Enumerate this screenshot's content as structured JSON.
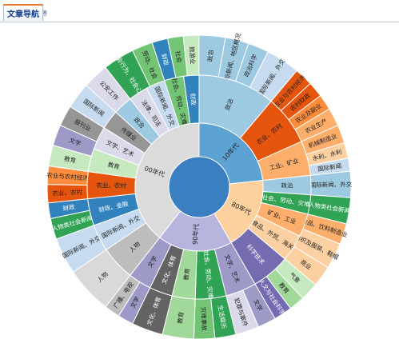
{
  "tab": {
    "label": "文章导航",
    "close_icon": "close-icon"
  },
  "chart_data": {
    "type": "sunburst",
    "center": {
      "color": "#3a7fc0"
    },
    "decades": [
      {
        "name": "10年代",
        "color": "#5ca2d2",
        "start": -90,
        "end": -6
      },
      {
        "name": "80年代",
        "color": "#fdd09e",
        "start": -6,
        "end": 60
      },
      {
        "name": "90年代",
        "color": "#b7b5de",
        "start": 60,
        "end": 128
      },
      {
        "name": "00年代",
        "color": "#dbdbdb",
        "start": 128,
        "end": 270
      }
    ],
    "ring2": [
      {
        "label": "政治",
        "color": "#9ecae1",
        "start": -90,
        "end": -50
      },
      {
        "label": "农业、农村",
        "color": "#e6550d",
        "start": -50,
        "end": -24
      },
      {
        "label": "工业、矿业",
        "color": "#fdae6b",
        "start": -24,
        "end": -6
      },
      {
        "label": "政治",
        "color": "#9ecae1",
        "start": -6,
        "end": 4
      },
      {
        "label": "社会、劳动、灾难",
        "color": "#31a354",
        "start": 4,
        "end": 14
      },
      {
        "label": "矿业、工业",
        "color": "#fdae6b",
        "start": 14,
        "end": 26
      },
      {
        "label": "食品、外贸、海关",
        "color": "#fdd0a2",
        "start": 26,
        "end": 40
      },
      {
        "label": "科学技术",
        "color": "#756bb1",
        "start": 40,
        "end": 60
      },
      {
        "label": "文学、艺术",
        "color": "#9e9ac8",
        "start": 60,
        "end": 76
      },
      {
        "label": "社会、劳动、灾难",
        "color": "#31a354",
        "start": 76,
        "end": 92
      },
      {
        "label": "教育",
        "color": "#a1d99b",
        "start": 92,
        "end": 104
      },
      {
        "label": "文化、体育",
        "color": "#636363",
        "start": 104,
        "end": 116
      },
      {
        "label": "文学",
        "color": "#9e9ac8",
        "start": 116,
        "end": 128
      },
      {
        "label": "人物",
        "color": "#bdbdbd",
        "start": 128,
        "end": 146
      },
      {
        "label": "国际新闻、外交",
        "color": "#c6dbef",
        "start": 146,
        "end": 160
      },
      {
        "label": "财政、金融",
        "color": "#3182bd",
        "start": 160,
        "end": 174
      },
      {
        "label": "农业、农村",
        "color": "#e6550d",
        "start": 174,
        "end": 188
      },
      {
        "label": "教育",
        "color": "#c7e9c0",
        "start": 188,
        "end": 200
      },
      {
        "label": "文学、艺术",
        "color": "#dadaeb",
        "start": 200,
        "end": 212
      },
      {
        "label": "传媒业",
        "color": "#969696",
        "start": 212,
        "end": 222
      },
      {
        "label": "政治",
        "color": "#9ecae1",
        "start": 222,
        "end": 232
      },
      {
        "label": "法律、司法",
        "color": "#dadaeb",
        "start": 232,
        "end": 242
      },
      {
        "label": "国际新闻、外交",
        "color": "#c6dbef",
        "start": 242,
        "end": 252
      },
      {
        "label": "社会、劳动、灾难",
        "color": "#74c476",
        "start": 252,
        "end": 262
      },
      {
        "label": "财政",
        "color": "#3182bd",
        "start": 262,
        "end": 270
      }
    ],
    "ring3": [
      {
        "label": "政治",
        "color": "#9ecae1",
        "start": -90,
        "end": -80
      },
      {
        "label": "国际新闻、地区概况",
        "color": "#9ecae1",
        "start": -80,
        "end": -71
      },
      {
        "label": "政治科学",
        "color": "#9ecae1",
        "start": -71,
        "end": -63
      },
      {
        "label": "国际新闻、外交",
        "color": "#c6dbef",
        "start": -63,
        "end": -50
      },
      {
        "label": "农业与农村经济",
        "color": "#e6550d",
        "start": -50,
        "end": -43
      },
      {
        "label": "农村财政",
        "color": "#e6550d",
        "start": -43,
        "end": -37
      },
      {
        "label": "农业及副业",
        "color": "#fd8d3c",
        "start": -37,
        "end": -31
      },
      {
        "label": "农业生产",
        "color": "#fdae6b",
        "start": -31,
        "end": -24
      },
      {
        "label": "机械制造业",
        "color": "#fdae6b",
        "start": -24,
        "end": -17
      },
      {
        "label": "水利、水利",
        "color": "#fdd0a2",
        "start": -17,
        "end": -11
      },
      {
        "label": "国际新闻",
        "color": "#c6dbef",
        "start": -11,
        "end": -6
      },
      {
        "label": "国际新闻、外交",
        "color": "#9ecae1",
        "start": -6,
        "end": 4
      },
      {
        "label": "人物类社会新闻",
        "color": "#31a354",
        "start": 4,
        "end": 14
      },
      {
        "label": "食品、饮料制造业",
        "color": "#fdae6b",
        "start": 14,
        "end": 22
      },
      {
        "label": "纺织及服装、鞋帽",
        "color": "#fdd0a2",
        "start": 22,
        "end": 32
      },
      {
        "label": "商业",
        "color": "#fdd0a2",
        "start": 32,
        "end": 40
      },
      {
        "label": "气象",
        "color": "#c7e9c0",
        "start": 40,
        "end": 47
      },
      {
        "label": "教育",
        "color": "#a1d99b",
        "start": 47,
        "end": 53
      },
      {
        "label": "人文与社会科学",
        "color": "#756bb1",
        "start": 53,
        "end": 60
      },
      {
        "label": "文学",
        "color": "#9e9ac8",
        "start": 60,
        "end": 67
      },
      {
        "label": "犯罪与案件",
        "color": "#dadaeb",
        "start": 67,
        "end": 76
      },
      {
        "label": "生活娱乐",
        "color": "#31a354",
        "start": 76,
        "end": 84
      },
      {
        "label": "灾难事故",
        "color": "#74c476",
        "start": 84,
        "end": 92
      },
      {
        "label": "教育",
        "color": "#a1d99b",
        "start": 92,
        "end": 104
      },
      {
        "label": "文化、体育",
        "color": "#636363",
        "start": 104,
        "end": 116
      },
      {
        "label": "文学",
        "color": "#9e9ac8",
        "start": 116,
        "end": 122
      },
      {
        "label": "广播、电视",
        "color": "#bdbdbd",
        "start": 122,
        "end": 128
      },
      {
        "label": "人物",
        "color": "#d9d9d9",
        "start": 128,
        "end": 146
      },
      {
        "label": "国际新闻、外交",
        "color": "#c6dbef",
        "start": 146,
        "end": 160
      },
      {
        "label": "人物类社会新闻",
        "color": "#31a354",
        "start": 160,
        "end": 168
      },
      {
        "label": "财政",
        "color": "#3182bd",
        "start": 168,
        "end": 174
      },
      {
        "label": "农业、农村",
        "color": "#e6550d",
        "start": 174,
        "end": 181
      },
      {
        "label": "农业与农村经济",
        "color": "#fd8d3c",
        "start": 181,
        "end": 188
      },
      {
        "label": "教育",
        "color": "#c7e9c0",
        "start": 188,
        "end": 196
      },
      {
        "label": "文学",
        "color": "#9e9ac8",
        "start": 196,
        "end": 204
      },
      {
        "label": "报刊业",
        "color": "#969696",
        "start": 204,
        "end": 212
      },
      {
        "label": "国际新闻",
        "color": "#c6dbef",
        "start": 212,
        "end": 222
      },
      {
        "label": "公安工作",
        "color": "#dadaeb",
        "start": 222,
        "end": 232
      },
      {
        "label": "社会行为、社会心理",
        "color": "#31a354",
        "start": 232,
        "end": 244
      },
      {
        "label": "劳动、社会",
        "color": "#74c476",
        "start": 244,
        "end": 252
      },
      {
        "label": "财政",
        "color": "#3182bd",
        "start": 252,
        "end": 258
      },
      {
        "label": "社会",
        "color": "#74c476",
        "start": 258,
        "end": 264
      },
      {
        "label": "旅游业",
        "color": "#c7e9c0",
        "start": 264,
        "end": 270
      }
    ]
  }
}
